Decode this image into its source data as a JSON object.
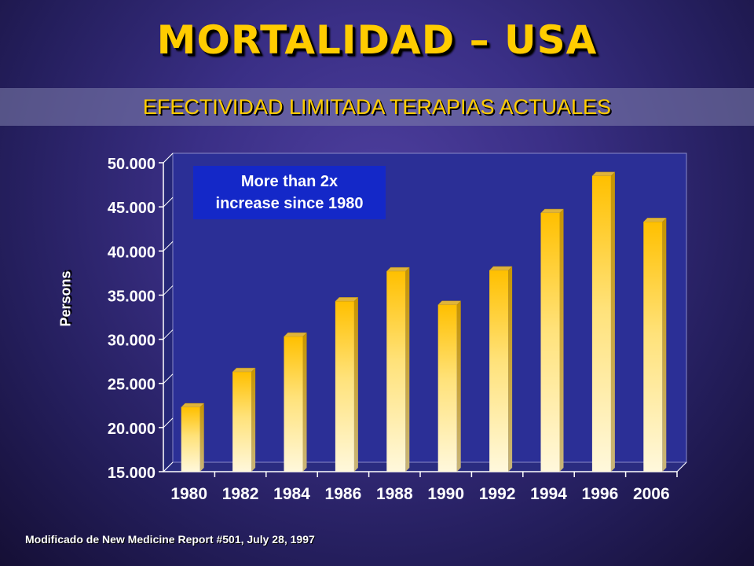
{
  "title": "MORTALIDAD – USA",
  "subtitle": "EFECTIVIDAD LIMITADA TERAPIAS ACTUALES",
  "source_note": "Modificado de New Medicine Report #501, July 28, 1997",
  "chart_data": {
    "type": "bar",
    "categories": [
      "1980",
      "1982",
      "1984",
      "1986",
      "1988",
      "1990",
      "1992",
      "1994",
      "1996",
      "2006"
    ],
    "values": [
      22300,
      26300,
      30300,
      34300,
      37700,
      33900,
      37800,
      44300,
      48500,
      43300
    ],
    "ylabel": "Persons",
    "xlabel": "",
    "ylim": [
      15000,
      50000
    ],
    "yticks": [
      15000,
      20000,
      25000,
      30000,
      35000,
      40000,
      45000,
      50000
    ],
    "ytick_labels": [
      "15.000",
      "20.000",
      "25.000",
      "30.000",
      "35.000",
      "40.000",
      "45.000",
      "50.000"
    ],
    "annotation": [
      "More than 2x",
      "increase since 1980"
    ],
    "colors": {
      "bar_top": "#ffc000",
      "bar_bottom": "#fff8dc",
      "plot_bg": "#2b2f96",
      "callout_bg": "#1428c8"
    }
  }
}
